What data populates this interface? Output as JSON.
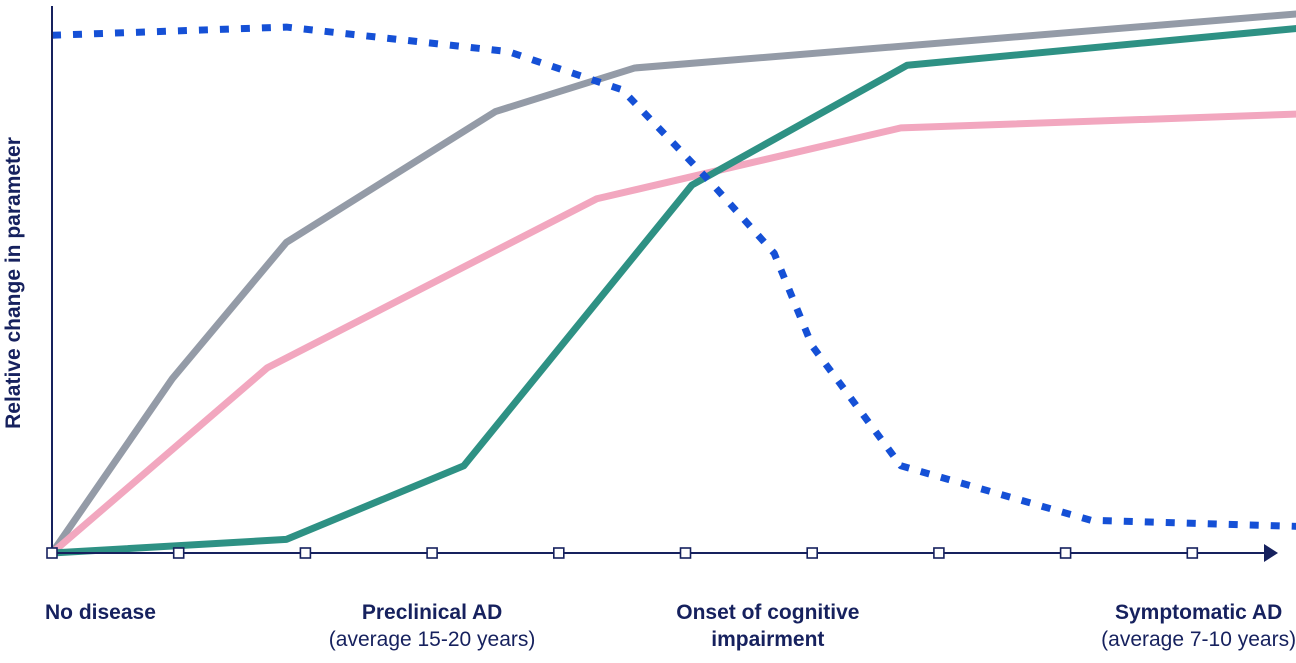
{
  "chart_data": {
    "type": "line",
    "title": "",
    "xlabel": "",
    "ylabel": "Relative change in parameter",
    "x": [
      0,
      1,
      2,
      3,
      4,
      5,
      6,
      7,
      8,
      9,
      10
    ],
    "xlim": [
      0,
      10.4
    ],
    "ylim": [
      0,
      100
    ],
    "grid": false,
    "legend": "none",
    "series": [
      {
        "color": "#949ba7",
        "style": "solid",
        "points": [
          [
            0,
            0
          ],
          [
            0.95,
            32
          ],
          [
            1.85,
            57
          ],
          [
            3.5,
            81
          ],
          [
            4.6,
            89
          ],
          [
            10.4,
            100
          ]
        ]
      },
      {
        "color": "#f2a7bf",
        "style": "solid",
        "points": [
          [
            0,
            0
          ],
          [
            1.7,
            34
          ],
          [
            4.3,
            65
          ],
          [
            6.7,
            78
          ],
          [
            10.4,
            81
          ]
        ]
      },
      {
        "color": "#2e9184",
        "style": "solid",
        "points": [
          [
            0,
            0
          ],
          [
            1.85,
            2.5
          ],
          [
            3.25,
            16
          ],
          [
            5.05,
            67.5
          ],
          [
            6.75,
            89.5
          ],
          [
            10.4,
            97.5
          ]
        ]
      },
      {
        "color": "#1550d6",
        "style": "dotted",
        "points": [
          [
            0,
            95
          ],
          [
            1.85,
            96.5
          ],
          [
            3.6,
            92
          ],
          [
            4.5,
            85
          ],
          [
            5.2,
            68
          ],
          [
            5.7,
            55
          ],
          [
            6,
            38
          ],
          [
            6.7,
            16
          ],
          [
            8.2,
            6
          ],
          [
            10.4,
            4.5
          ]
        ]
      }
    ],
    "stage_labels": [
      {
        "x": 0,
        "title": "No disease",
        "subtitle": ""
      },
      {
        "x": 3.0,
        "title": "Preclinical AD",
        "subtitle": "(average 15-20 years)"
      },
      {
        "x": 5.65,
        "title": "Onset of cognitive",
        "subtitle": "impairment"
      },
      {
        "x": 9.05,
        "title": "Symptomatic AD",
        "subtitle": "(average 7-10 years)"
      }
    ]
  },
  "colors": {
    "axis": "#16215e"
  }
}
